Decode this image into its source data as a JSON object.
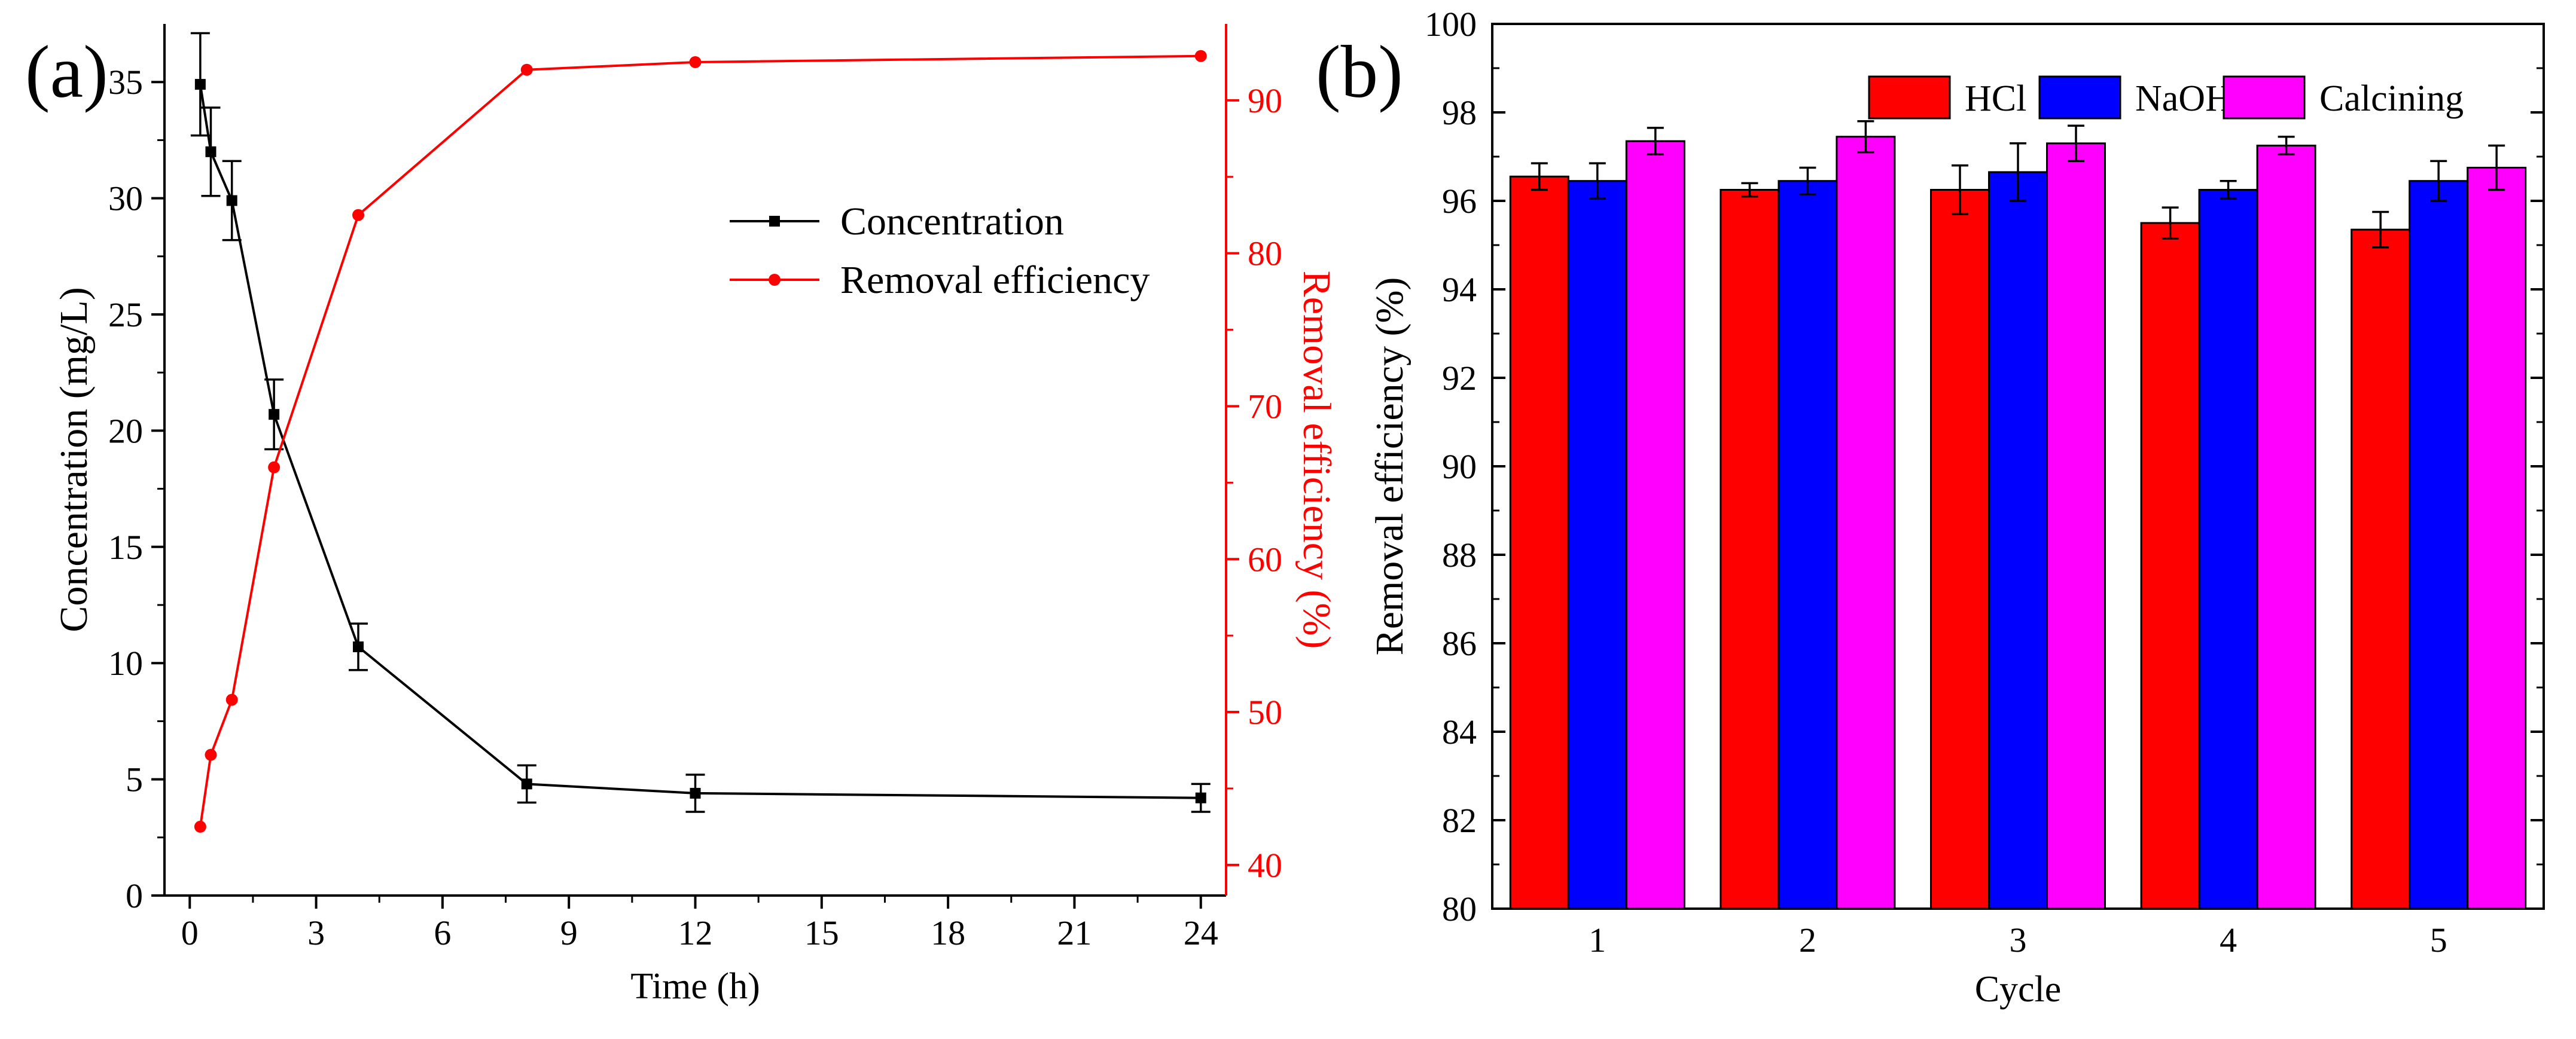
{
  "panels": {
    "a": {
      "label": "(a)"
    },
    "b": {
      "label": "(b)"
    }
  },
  "chart_data": [
    {
      "id": "a",
      "type": "line",
      "title": "",
      "xlabel": "Time (h)",
      "ylabel": "Concentration (mg/L)",
      "y2label": "Removal efficiency (%)",
      "xlim": [
        -0.6,
        24.6
      ],
      "ylim": [
        0,
        37.5
      ],
      "y2lim": [
        38,
        95
      ],
      "xticks": [
        0,
        3,
        6,
        9,
        12,
        15,
        18,
        21,
        24
      ],
      "yticks": [
        0,
        5,
        10,
        15,
        20,
        25,
        30,
        35
      ],
      "y2ticks": [
        40,
        50,
        60,
        70,
        80,
        90
      ],
      "legend": {
        "position": "upper-right"
      },
      "series": [
        {
          "name": "Concentration",
          "axis": "left",
          "color": "#000000",
          "marker": "square",
          "x": [
            0.25,
            0.5,
            1,
            2,
            4,
            8,
            12,
            24
          ],
          "y": [
            34.9,
            32.0,
            29.9,
            20.7,
            10.7,
            4.8,
            4.4,
            4.2
          ],
          "err": [
            2.2,
            1.9,
            1.7,
            1.5,
            1.0,
            0.8,
            0.8,
            0.6
          ]
        },
        {
          "name": "Removal efficiency",
          "axis": "right",
          "color": "#ff0000",
          "marker": "circle",
          "x": [
            0.25,
            0.5,
            1,
            2,
            4,
            8,
            12,
            24
          ],
          "y": [
            42.5,
            47.2,
            50.8,
            66.0,
            82.5,
            92.0,
            92.5,
            92.9
          ]
        }
      ]
    },
    {
      "id": "b",
      "type": "bar",
      "title": "",
      "xlabel": "Cycle",
      "ylabel": "Removal efficiency (%)",
      "ylim": [
        80,
        100
      ],
      "yticks": [
        80,
        82,
        84,
        86,
        88,
        90,
        92,
        94,
        96,
        98,
        100
      ],
      "categories": [
        "1",
        "2",
        "3",
        "4",
        "5"
      ],
      "legend": {
        "position": "top",
        "orientation": "horizontal"
      },
      "series": [
        {
          "name": "HCl",
          "color": "#ff0000",
          "values": [
            96.55,
            96.25,
            96.25,
            95.5,
            95.35
          ],
          "err": [
            0.3,
            0.15,
            0.55,
            0.35,
            0.4
          ]
        },
        {
          "name": "NaOH",
          "color": "#0000ff",
          "values": [
            96.45,
            96.45,
            96.65,
            96.25,
            96.45
          ],
          "err": [
            0.4,
            0.3,
            0.65,
            0.2,
            0.45
          ]
        },
        {
          "name": "Calcining",
          "color": "#ff00ff",
          "values": [
            97.35,
            97.45,
            97.3,
            97.25,
            96.75
          ],
          "err": [
            0.3,
            0.35,
            0.4,
            0.2,
            0.5
          ]
        }
      ]
    }
  ]
}
